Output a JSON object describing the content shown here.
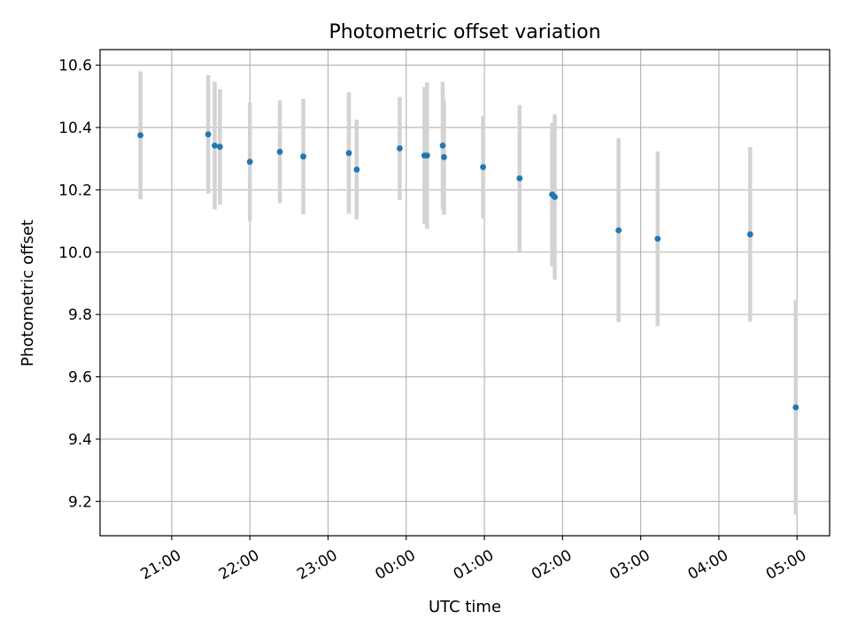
{
  "chart_data": {
    "type": "scatter",
    "title": "Photometric offset variation",
    "xlabel": "UTC time",
    "ylabel": "Photometric offset",
    "x_ticks": [
      "21:00",
      "22:00",
      "23:00",
      "00:00",
      "01:00",
      "02:00",
      "03:00",
      "04:00",
      "05:00"
    ],
    "y_ticks": [
      "9.2",
      "9.4",
      "9.6",
      "9.8",
      "10.0",
      "10.2",
      "10.4",
      "10.6"
    ],
    "xlim": [
      "20:05",
      "05:25"
    ],
    "ylim": [
      9.09,
      10.65
    ],
    "grid": true,
    "marker_color": "#1f77b4",
    "errorbar_color": "#d3d3d3",
    "series": [
      {
        "points": [
          {
            "x": "20:36",
            "y": 10.375,
            "yerr": 0.205
          },
          {
            "x": "21:28",
            "y": 10.378,
            "yerr": 0.19
          },
          {
            "x": "21:33",
            "y": 10.342,
            "yerr": 0.205
          },
          {
            "x": "21:37",
            "y": 10.338,
            "yerr": 0.185
          },
          {
            "x": "22:00",
            "y": 10.29,
            "yerr": 0.19
          },
          {
            "x": "22:23",
            "y": 10.322,
            "yerr": 0.165
          },
          {
            "x": "22:41",
            "y": 10.307,
            "yerr": 0.185
          },
          {
            "x": "23:16",
            "y": 10.318,
            "yerr": 0.195
          },
          {
            "x": "23:22",
            "y": 10.265,
            "yerr": 0.16
          },
          {
            "x": "23:55",
            "y": 10.333,
            "yerr": 0.165
          },
          {
            "x": "00:14",
            "y": 10.31,
            "yerr": 0.22
          },
          {
            "x": "00:16",
            "y": 10.31,
            "yerr": 0.235
          },
          {
            "x": "00:28",
            "y": 10.342,
            "yerr": 0.205
          },
          {
            "x": "00:29",
            "y": 10.305,
            "yerr": 0.185
          },
          {
            "x": "00:59",
            "y": 10.273,
            "yerr": 0.165
          },
          {
            "x": "01:27",
            "y": 10.237,
            "yerr": 0.235
          },
          {
            "x": "01:52",
            "y": 10.185,
            "yerr": 0.23
          },
          {
            "x": "01:54",
            "y": 10.177,
            "yerr": 0.265
          },
          {
            "x": "02:43",
            "y": 10.07,
            "yerr": 0.295
          },
          {
            "x": "03:13",
            "y": 10.043,
            "yerr": 0.28
          },
          {
            "x": "04:24",
            "y": 10.057,
            "yerr": 0.28
          },
          {
            "x": "04:59",
            "y": 9.502,
            "yerr": 0.345
          }
        ]
      }
    ]
  }
}
